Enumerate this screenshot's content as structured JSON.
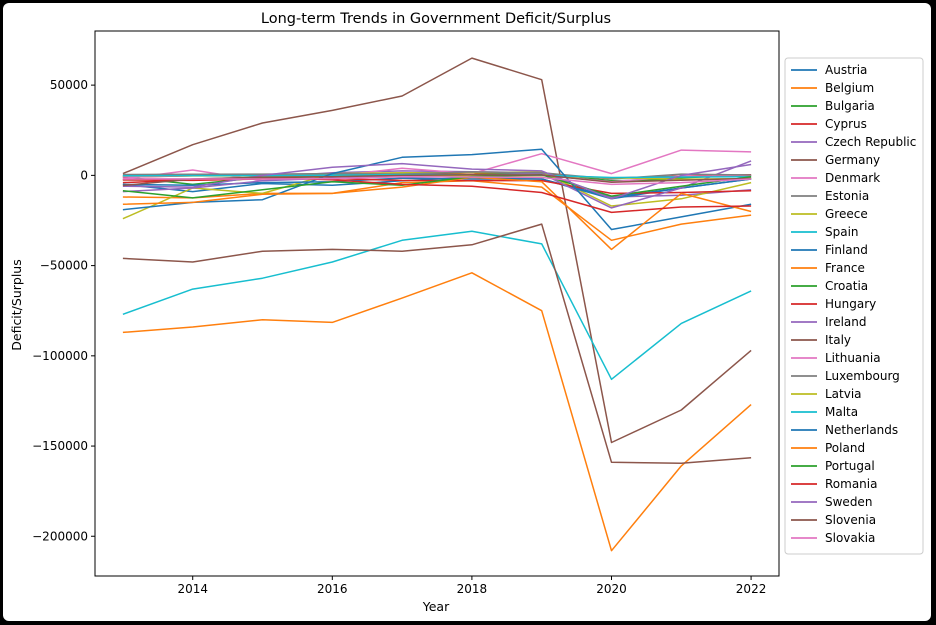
{
  "chart_data": {
    "type": "line",
    "title": "Long-term Trends in Government Deficit/Surplus",
    "xlabel": "Year",
    "ylabel": "Deficit/Surplus",
    "x": [
      2013,
      2014,
      2015,
      2016,
      2017,
      2018,
      2019,
      2020,
      2021,
      2022
    ],
    "xlim": [
      2012.6,
      2022.4
    ],
    "ylim": [
      -222000,
      80000
    ],
    "x_ticks": [
      2014,
      2016,
      2018,
      2020,
      2022
    ],
    "x_tick_labels": [
      "2014",
      "2016",
      "2018",
      "2020",
      "2022"
    ],
    "y_ticks": [
      50000,
      0,
      -50000,
      -100000,
      -150000,
      -200000
    ],
    "y_tick_labels": [
      "50000",
      "0",
      "−50000",
      "−100000",
      "−150000",
      "−200000"
    ],
    "grid": false,
    "legend_position": "right",
    "series": [
      {
        "name": "Austria",
        "color": "#1f77b4",
        "values": [
          -5000,
          -9000,
          -4500,
          -5500,
          -3000,
          -1000,
          -2000,
          -12000,
          -7000,
          -2000
        ]
      },
      {
        "name": "Belgium",
        "color": "#ff7f0e",
        "values": [
          -12000,
          -12500,
          -10000,
          -10000,
          -4000,
          -3000,
          -6500,
          -36000,
          -27000,
          -22000
        ]
      },
      {
        "name": "Bulgaria",
        "color": "#2ca02c",
        "values": [
          -800,
          -5000,
          -1000,
          300,
          800,
          1000,
          1500,
          -3000,
          -2300,
          -1800
        ]
      },
      {
        "name": "Cyprus",
        "color": "#d62728",
        "values": [
          -1000,
          -200,
          -200,
          100,
          400,
          600,
          300,
          -1500,
          -400,
          300
        ]
      },
      {
        "name": "Czech Republic",
        "color": "#9467bd",
        "values": [
          -2000,
          -2000,
          -1000,
          1500,
          2500,
          2000,
          1500,
          -12000,
          -11000,
          -8000
        ]
      },
      {
        "name": "Germany",
        "color": "#8c564b",
        "values": [
          1000,
          17000,
          29000,
          36000,
          44000,
          65000,
          53000,
          -148000,
          -130000,
          -97000
        ]
      },
      {
        "name": "Denmark",
        "color": "#e377c2",
        "values": [
          -2000,
          3000,
          -3000,
          -500,
          4000,
          1000,
          12000,
          1000,
          14000,
          13000
        ]
      },
      {
        "name": "Estonia",
        "color": "#7f7f7f",
        "values": [
          -200,
          200,
          100,
          -200,
          -300,
          -600,
          100,
          -1500,
          -600,
          -300
        ]
      },
      {
        "name": "Greece",
        "color": "#bcbd22",
        "values": [
          -24000,
          -7000,
          -10000,
          1000,
          1500,
          1500,
          2000,
          -17000,
          -13000,
          -4000
        ]
      },
      {
        "name": "Spain",
        "color": "#17becf",
        "values": [
          -77000,
          -63000,
          -57000,
          -48000,
          -36000,
          -31000,
          -38000,
          -113000,
          -82000,
          -64000
        ]
      },
      {
        "name": "Finland",
        "color": "#1f77b4",
        "values": [
          -5000,
          -5500,
          -4000,
          -3500,
          -1500,
          -2000,
          -2000,
          -13000,
          -7000,
          -2000
        ]
      },
      {
        "name": "France",
        "color": "#ff7f0e",
        "values": [
          -87000,
          -84000,
          -80000,
          -81500,
          -68000,
          -54000,
          -75000,
          -208000,
          -161000,
          -127000
        ]
      },
      {
        "name": "Croatia",
        "color": "#2ca02c",
        "values": [
          -2500,
          -2500,
          -1500,
          -500,
          400,
          100,
          200,
          -3500,
          -1300,
          100
        ]
      },
      {
        "name": "Hungary",
        "color": "#d62728",
        "values": [
          -2500,
          -2800,
          -2000,
          -1800,
          -2800,
          -2900,
          -2900,
          -10000,
          -9500,
          -8500
        ]
      },
      {
        "name": "Ireland",
        "color": "#9467bd",
        "values": [
          -9000,
          -7000,
          -3000,
          -1500,
          -700,
          200,
          1000,
          -18000,
          -7000,
          8000
        ]
      },
      {
        "name": "Italy",
        "color": "#8c564b",
        "values": [
          -46000,
          -48000,
          -42000,
          -41000,
          -42000,
          -38500,
          -27000,
          -159000,
          -159500,
          -156500
        ]
      },
      {
        "name": "Lithuania",
        "color": "#e377c2",
        "values": [
          -900,
          -200,
          -100,
          100,
          200,
          200,
          200,
          -3500,
          -500,
          -300
        ]
      },
      {
        "name": "Luxembourg",
        "color": "#7f7f7f",
        "values": [
          500,
          600,
          700,
          1000,
          700,
          1900,
          1500,
          -2000,
          700,
          200
        ]
      },
      {
        "name": "Latvia",
        "color": "#bcbd22",
        "values": [
          -300,
          -300,
          -300,
          100,
          -200,
          -200,
          -100,
          -1300,
          -2100,
          -1800
        ]
      },
      {
        "name": "Malta",
        "color": "#17becf",
        "values": [
          -200,
          -100,
          -100,
          100,
          400,
          300,
          100,
          -1200,
          -900,
          -800
        ]
      },
      {
        "name": "Netherlands",
        "color": "#1f77b4",
        "values": [
          -19000,
          -15000,
          -13500,
          1000,
          10000,
          11500,
          14500,
          -30000,
          -23000,
          -16000
        ]
      },
      {
        "name": "Poland",
        "color": "#ff7f0e",
        "values": [
          -16000,
          -15000,
          -10500,
          -10000,
          -6500,
          -1000,
          -3500,
          -41000,
          -10000,
          -20000
        ]
      },
      {
        "name": "Portugal",
        "color": "#2ca02c",
        "values": [
          -8500,
          -12500,
          -8000,
          -3500,
          -5500,
          -700,
          300,
          -11500,
          -6000,
          -800
        ]
      },
      {
        "name": "Romania",
        "color": "#d62728",
        "values": [
          -4000,
          -2500,
          -1000,
          -2500,
          -5000,
          -6000,
          -9500,
          -20500,
          -17500,
          -17000
        ]
      },
      {
        "name": "Sweden",
        "color": "#9467bd",
        "values": [
          -6000,
          -6500,
          0,
          4500,
          6500,
          3500,
          2500,
          -13000,
          0,
          6000
        ]
      },
      {
        "name": "Slovenia",
        "color": "#8c564b",
        "values": [
          -5600,
          -2000,
          -1000,
          -800,
          0,
          300,
          200,
          -3800,
          -2700,
          -1700
        ]
      },
      {
        "name": "Slovakia",
        "color": "#e377c2",
        "values": [
          -2000,
          -2000,
          -2000,
          -1800,
          -800,
          -900,
          -1200,
          -5000,
          -4000,
          -2000
        ]
      }
    ]
  }
}
